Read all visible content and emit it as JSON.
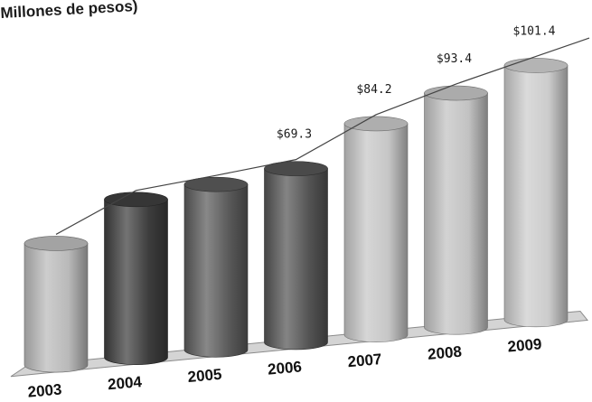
{
  "chart_data": {
    "type": "bar",
    "unit_label": "Millones de pesos)",
    "categories": [
      "2003",
      "2004",
      "2005",
      "2006",
      "2007",
      "2008",
      "2009"
    ],
    "values": [
      48.5,
      63.0,
      66.0,
      69.3,
      84.2,
      93.4,
      101.4
    ],
    "data_labels": [
      "",
      "",
      "",
      "$69.3",
      "$84.2",
      "$93.4",
      "$101.4"
    ],
    "bar_colors": [
      "#b9b9b9",
      "#3d3d3d",
      "#5a5a5a",
      "#545454",
      "#c6c6c6",
      "#c2c2c2",
      "#cccccc"
    ],
    "has_trend_line": true,
    "grid": false,
    "legend": false
  }
}
